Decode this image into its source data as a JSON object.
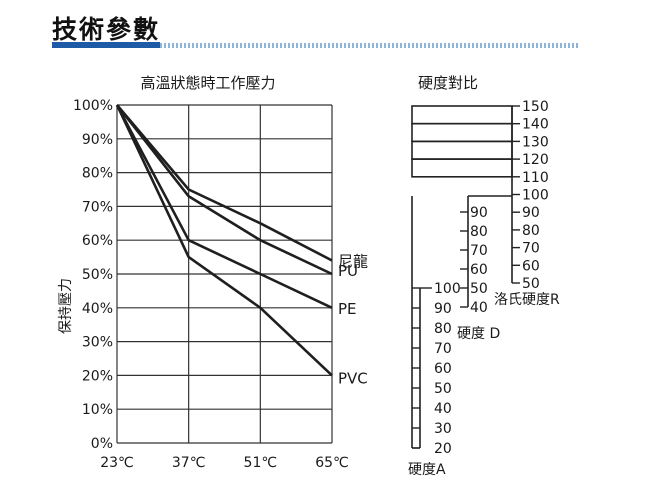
{
  "heading": "技術參數",
  "chart_data": [
    {
      "type": "line",
      "title": "高溫狀態時工作壓力",
      "ylabel": "保持壓力",
      "ylim": [
        0,
        100
      ],
      "categories": [
        "23℃",
        "37℃",
        "51℃",
        "65℃"
      ],
      "y_ticks": [
        "0%",
        "10%",
        "20%",
        "30%",
        "40%",
        "50%",
        "60%",
        "70%",
        "80%",
        "90%",
        "100%"
      ],
      "grid": true,
      "series": [
        {
          "name": "尼龍",
          "values": [
            100,
            75,
            65,
            54
          ]
        },
        {
          "name": "PU",
          "values": [
            100,
            73,
            60,
            50
          ]
        },
        {
          "name": "PE",
          "values": [
            100,
            60,
            50,
            40
          ]
        },
        {
          "name": "PVC",
          "values": [
            100,
            55,
            40,
            20
          ]
        }
      ]
    },
    {
      "type": "table",
      "title": "硬度對比",
      "scales": [
        {
          "name": "洛氏硬度R",
          "values": [
            "50",
            "60",
            "70",
            "80",
            "90",
            "100",
            "110",
            "120",
            "130",
            "140",
            "150"
          ]
        },
        {
          "name": "硬度 D",
          "values": [
            "40",
            "50",
            "60",
            "70",
            "80",
            "90"
          ]
        },
        {
          "name": "硬度A",
          "values": [
            "20",
            "30",
            "40",
            "50",
            "60",
            "70",
            "80",
            "90",
            "100"
          ]
        }
      ]
    }
  ]
}
